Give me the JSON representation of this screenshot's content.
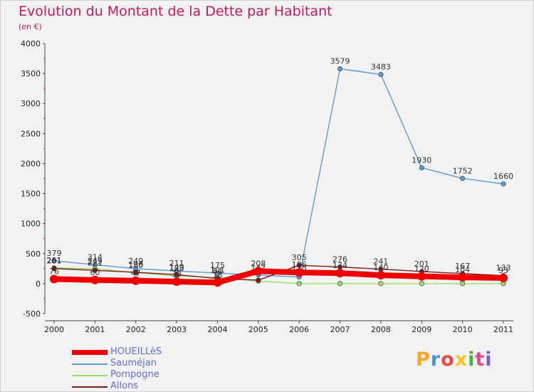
{
  "title": "Evolution du Montant de la Dette par Habitant",
  "subtitle": "(en €)",
  "logo": {
    "text": "Proxiti",
    "colors": [
      "#f5a623",
      "#4a90d9",
      "#e64a4a",
      "#f5c623",
      "#4ab04a",
      "#e64a8a",
      "#7a5ad9"
    ]
  },
  "chart_data": {
    "type": "line",
    "x": [
      "2000",
      "2001",
      "2002",
      "2003",
      "2004",
      "2005",
      "2006",
      "2007",
      "2008",
      "2009",
      "2010",
      "2011"
    ],
    "ylim": [
      -500,
      4000
    ],
    "yticks": [
      "-500",
      "0",
      "500",
      "1000",
      "1500",
      "2000",
      "2500",
      "3000",
      "3500",
      "4000"
    ],
    "ytick_values": [
      -500,
      0,
      500,
      1000,
      1500,
      2000,
      2500,
      3000,
      3500,
      4000
    ],
    "grid": false,
    "legend_position": "bottom-left",
    "series": [
      {
        "name": "HOUEILLèS",
        "color": "#ee0000",
        "values": [
          76,
          60,
          47,
          33,
          18,
          208,
          186,
          174,
          140,
          120,
          104,
          93
        ],
        "labels": [
          "76",
          "60",
          "47",
          "33",
          "18",
          "208",
          "186",
          "174",
          "140",
          "120",
          "104",
          "93"
        ]
      },
      {
        "name": "Sauméjan",
        "color": "#5b9bd5",
        "values": [
          379,
          314,
          249,
          211,
          175,
          142,
          110,
          3579,
          3483,
          1930,
          1752,
          1660
        ],
        "labels": [
          "379",
          "314",
          "249",
          "211",
          "175",
          "142",
          "110",
          "3579",
          "3483",
          "1930",
          "1752",
          "1660"
        ]
      },
      {
        "name": "Pompogne",
        "color": "#99dd66",
        "values": [
          261,
          249,
          180,
          128,
          101,
          41,
          0,
          0,
          0,
          0,
          0,
          0
        ],
        "labels": [
          "261",
          "249",
          "180",
          "128",
          "101",
          "",
          "",
          "",
          "",
          "",
          "",
          ""
        ]
      },
      {
        "name": "Allons",
        "color": "#7a1a1a",
        "values": [
          251,
          221,
          188,
          149,
          84,
          57,
          305,
          276,
          241,
          201,
          167,
          133
        ],
        "labels": [
          "251",
          "221",
          "188",
          "149",
          "84",
          "",
          "305",
          "276",
          "241",
          "201",
          "167",
          "133"
        ]
      }
    ]
  }
}
